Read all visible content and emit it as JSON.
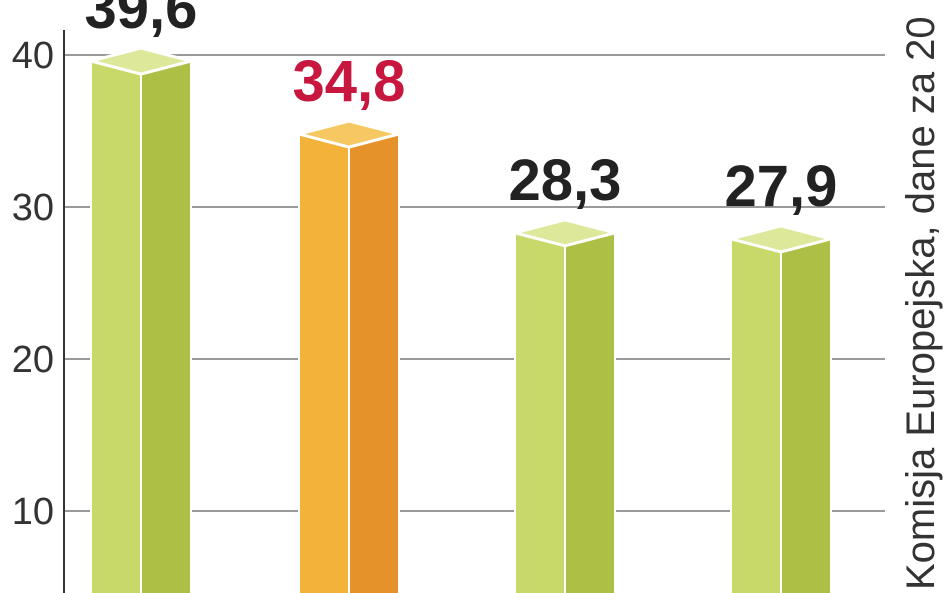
{
  "chart_data": {
    "type": "bar",
    "categories": [
      "",
      "",
      "",
      ""
    ],
    "values": [
      39.6,
      34.8,
      28.3,
      27.9
    ],
    "value_labels": [
      "39,6",
      "34,8",
      "28,3",
      "27,9"
    ],
    "ylim": [
      0,
      40
    ],
    "yticks": [
      10,
      20,
      30,
      40
    ],
    "ytick_labels": [
      "10",
      "20",
      "30",
      "40"
    ],
    "grid": true,
    "annotation": "Komisja Europejska, dane za 20",
    "colors": {
      "default_front": "#c8d96a",
      "default_side": "#adbf45",
      "default_top": "#dde89b",
      "highlight_front": "#f3b23a",
      "highlight_side": "#e6922a",
      "highlight_top": "#f6c862",
      "default_label": "#222222",
      "highlight_label": "#c8173f",
      "grid": "#9a9a9a",
      "axis": "#333333"
    },
    "highlight_index": 1
  }
}
